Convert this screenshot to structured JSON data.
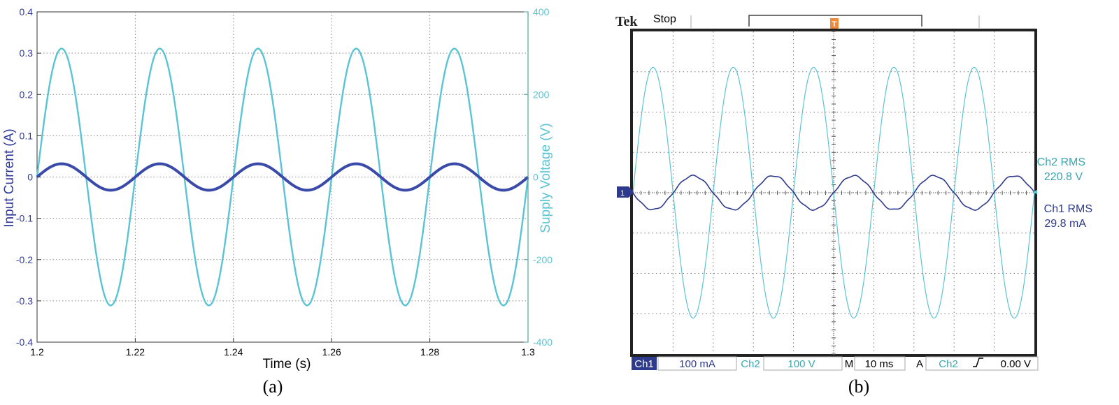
{
  "panel_a": {
    "caption": "(a)",
    "chart_data": {
      "type": "line",
      "title": "",
      "xlabel": "Time (s)",
      "ylabel_left": "Input Current (A)",
      "ylabel_right": "Supply Voltage (V)",
      "xlim": [
        1.2,
        1.3
      ],
      "ylim_left": [
        -0.4,
        0.4
      ],
      "ylim_right": [
        -400,
        400
      ],
      "grid": true,
      "x_ticks": [
        "1.2",
        "1.22",
        "1.24",
        "1.26",
        "1.28",
        "1.3"
      ],
      "y_left_ticks": [
        "0.4",
        "0.3",
        "0.2",
        "0.1",
        "0",
        "-0.1",
        "-0.2",
        "-0.3",
        "-0.4"
      ],
      "y_right_ticks": [
        "400",
        "200",
        "0",
        "-200",
        "-400"
      ],
      "series": [
        {
          "axis": "right",
          "color": "#5bc4d4",
          "frequency_hz": 50,
          "amplitude": 311,
          "phase_deg": 0,
          "x": [
            1.2,
            1.205,
            1.21,
            1.215,
            1.22,
            1.225,
            1.23,
            1.235,
            1.24,
            1.245,
            1.25,
            1.255,
            1.26,
            1.265,
            1.27,
            1.275,
            1.28,
            1.285,
            1.29,
            1.295,
            1.3
          ],
          "values": [
            0,
            311,
            0,
            -311,
            0,
            311,
            0,
            -311,
            0,
            311,
            0,
            -311,
            0,
            311,
            0,
            -311,
            0,
            311,
            0,
            -311,
            0
          ]
        },
        {
          "axis": "left",
          "color": "#3a4aa8",
          "frequency_hz": 50,
          "amplitude": 0.032,
          "phase_deg": 0,
          "x": [
            1.2,
            1.205,
            1.21,
            1.215,
            1.22,
            1.225,
            1.23,
            1.235,
            1.24,
            1.245,
            1.25,
            1.255,
            1.26,
            1.265,
            1.27,
            1.275,
            1.28,
            1.285,
            1.29,
            1.295,
            1.3
          ],
          "values": [
            0,
            0.032,
            0,
            -0.032,
            0,
            0.032,
            0,
            -0.032,
            0,
            0.032,
            0,
            -0.032,
            0,
            0.032,
            0,
            -0.032,
            0,
            0.032,
            0,
            -0.032,
            0
          ]
        }
      ]
    }
  },
  "panel_b": {
    "caption": "(b)",
    "brand": "Tek",
    "status": "Stop",
    "trigger_marker": "T",
    "ch1_marker": "1",
    "ch2_rms_label": "Ch2 RMS",
    "ch2_rms_value": "220.8 V",
    "ch1_rms_label": "Ch1 RMS",
    "ch1_rms_value": "29.8 mA",
    "bottom_bar": {
      "ch1_label": "Ch1",
      "ch1_scale": "100 mA",
      "ch2_label": "Ch2",
      "ch2_scale": "100 V",
      "m_label": "M",
      "time_scale": "10 ms",
      "a_label": "A",
      "trig_source": "Ch2",
      "trig_level": "0.00 V"
    },
    "colors": {
      "ch1": "#2e3a8c",
      "ch2": "#5bc4d4",
      "trigger": "#f08a3c"
    },
    "chart_data": {
      "type": "line",
      "grid": true,
      "divisions": {
        "x": 10,
        "y": 8
      },
      "series": [
        {
          "name": "Ch2",
          "volts_per_div": 100,
          "frequency_hz": 50,
          "amplitude": 311,
          "phase_deg": 0,
          "note_values_start": "sine, 5 cycles over 100 ms"
        },
        {
          "name": "Ch1",
          "amps_per_div": 0.1,
          "frequency_hz": 50,
          "amplitude": 0.042,
          "phase_deg": 180
        }
      ]
    }
  }
}
